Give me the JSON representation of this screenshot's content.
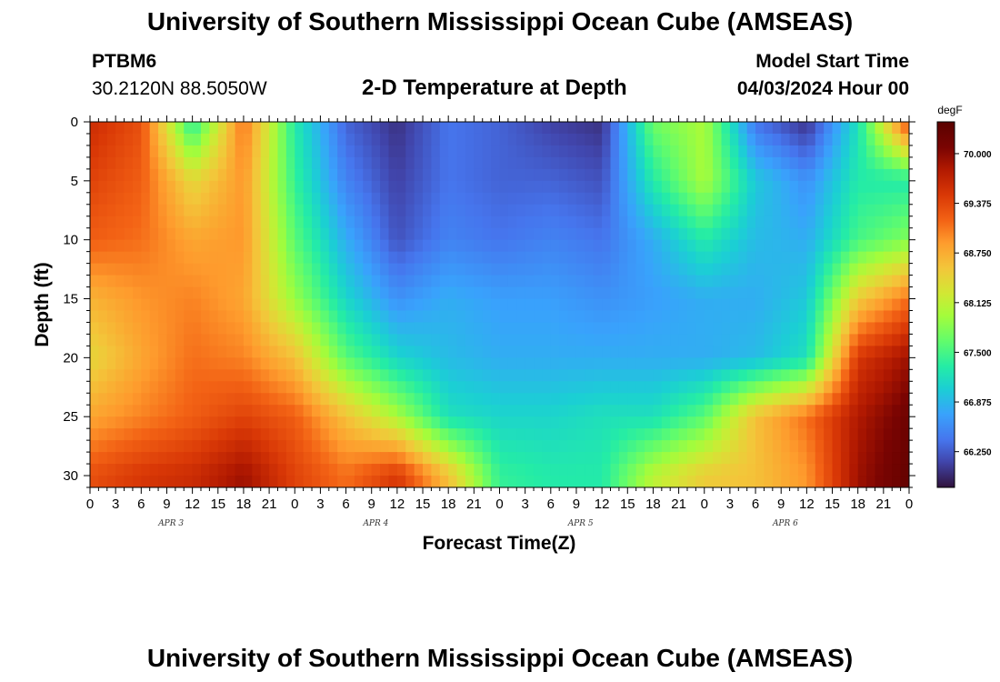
{
  "header": {
    "main_title": "University of Southern Mississippi Ocean Cube (AMSEAS)",
    "station_id": "PTBM6",
    "coords": "30.2120N  88.5050W",
    "subtitle": "2-D Temperature at Depth",
    "model_start_label": "Model Start Time",
    "model_start_value": "04/03/2024 Hour 00"
  },
  "footer": {
    "title": "University of Southern Mississippi Ocean Cube (AMSEAS)"
  },
  "chart_data": {
    "type": "heatmap",
    "title": "2-D Temperature at Depth",
    "xlabel": "Forecast Time(Z)",
    "ylabel": "Depth (ft)",
    "x_tick_labels": [
      "0",
      "3",
      "6",
      "9",
      "12",
      "15",
      "18",
      "21",
      "0",
      "3",
      "6",
      "9",
      "12",
      "15",
      "18",
      "21",
      "0",
      "3",
      "6",
      "9",
      "12",
      "15",
      "18",
      "21",
      "0",
      "3",
      "6",
      "9",
      "12",
      "15",
      "18",
      "21",
      "0"
    ],
    "day_labels": [
      "APR 3",
      "APR 4",
      "APR 5",
      "APR 6"
    ],
    "xlim_hours": [
      0,
      96
    ],
    "y_ticks": [
      0,
      5,
      10,
      15,
      20,
      25,
      30
    ],
    "ylim": [
      0,
      31
    ],
    "y_inverted": true,
    "colorbar": {
      "unit": "degF",
      "tick_labels": [
        "70.000",
        "69.375",
        "68.750",
        "68.125",
        "67.500",
        "66.875",
        "66.250"
      ],
      "range": [
        65.8,
        70.4
      ]
    },
    "x_hours": [
      0,
      6,
      12,
      18,
      24,
      30,
      36,
      42,
      48,
      54,
      60,
      66,
      72,
      78,
      84,
      90,
      96
    ],
    "depths_ft": [
      0,
      5,
      10,
      15,
      20,
      25,
      30
    ],
    "values_degF": [
      [
        69.6,
        69.3,
        67.3,
        69.1,
        67.3,
        66.3,
        66.0,
        66.4,
        66.3,
        66.1,
        66.0,
        67.7,
        68.0,
        66.4,
        66.0,
        67.2,
        69.4
      ],
      [
        69.4,
        69.2,
        68.4,
        68.9,
        67.4,
        66.5,
        66.1,
        66.4,
        66.3,
        66.3,
        66.2,
        67.3,
        68.0,
        67.0,
        66.6,
        67.3,
        67.3
      ],
      [
        69.2,
        69.1,
        68.8,
        68.9,
        67.6,
        66.8,
        66.2,
        66.5,
        66.4,
        66.5,
        66.4,
        66.8,
        67.3,
        66.9,
        66.8,
        67.5,
        67.8
      ],
      [
        68.7,
        68.9,
        69.0,
        68.8,
        67.9,
        67.1,
        66.6,
        66.8,
        66.7,
        66.7,
        66.6,
        66.7,
        66.8,
        66.8,
        67.0,
        68.5,
        69.1
      ],
      [
        68.4,
        68.8,
        69.1,
        69.0,
        68.6,
        67.6,
        67.1,
        66.9,
        66.8,
        66.8,
        66.8,
        66.8,
        66.8,
        66.9,
        67.2,
        69.5,
        69.9
      ],
      [
        68.8,
        69.0,
        69.2,
        69.4,
        69.2,
        68.6,
        68.0,
        67.2,
        67.1,
        67.1,
        67.2,
        67.2,
        67.6,
        68.6,
        69.1,
        69.8,
        70.2
      ],
      [
        69.3,
        69.5,
        69.6,
        69.9,
        69.4,
        69.1,
        69.5,
        68.6,
        67.4,
        67.3,
        67.3,
        68.1,
        68.5,
        68.6,
        68.9,
        69.9,
        70.3
      ]
    ]
  }
}
